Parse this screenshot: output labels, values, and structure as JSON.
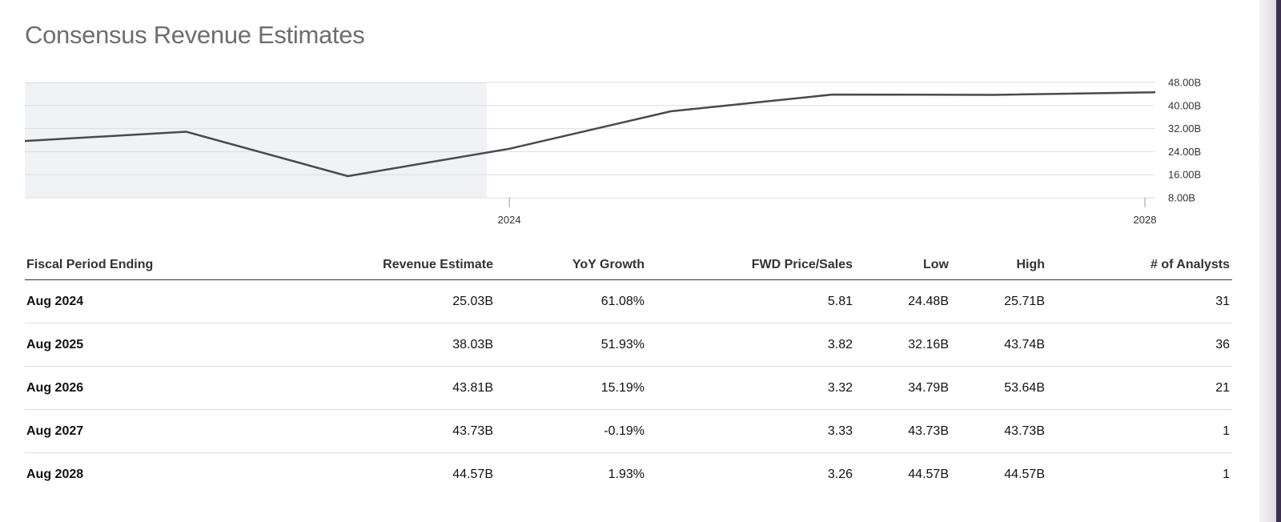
{
  "page": {
    "title": "Consensus Revenue Estimates"
  },
  "chart_data": {
    "type": "line",
    "title": "",
    "xlabel": "",
    "ylabel": "",
    "x_ticks": [
      "2024",
      "2028"
    ],
    "y_ticks": [
      "48.00B",
      "40.00B",
      "32.00B",
      "24.00B",
      "16.00B",
      "8.00B"
    ],
    "ylim": [
      8,
      48
    ],
    "y_unit": "B",
    "grid": true,
    "shaded_region": "historical (2021–2024)",
    "series": [
      {
        "x": [
          2021,
          2022,
          2023,
          2024,
          2025,
          2026,
          2027,
          2028
        ],
        "y": [
          27.7,
          30.9,
          15.5,
          25.0,
          38.0,
          43.8,
          43.7,
          44.6
        ]
      }
    ],
    "colors": {
      "line": "#4a4a4a",
      "shade": "#f1f2f6",
      "grid": "#dddddd"
    }
  },
  "table": {
    "headers": [
      "Fiscal Period Ending",
      "Revenue Estimate",
      "YoY Growth",
      "FWD Price/Sales",
      "Low",
      "High",
      "# of Analysts"
    ],
    "rows": [
      [
        "Aug 2024",
        "25.03B",
        "61.08%",
        "5.81",
        "24.48B",
        "25.71B",
        "31"
      ],
      [
        "Aug 2025",
        "38.03B",
        "51.93%",
        "3.82",
        "32.16B",
        "43.74B",
        "36"
      ],
      [
        "Aug 2026",
        "43.81B",
        "15.19%",
        "3.32",
        "34.79B",
        "53.64B",
        "21"
      ],
      [
        "Aug 2027",
        "43.73B",
        "-0.19%",
        "3.33",
        "43.73B",
        "43.73B",
        "1"
      ],
      [
        "Aug 2028",
        "44.57B",
        "1.93%",
        "3.26",
        "44.57B",
        "44.57B",
        "1"
      ]
    ]
  }
}
